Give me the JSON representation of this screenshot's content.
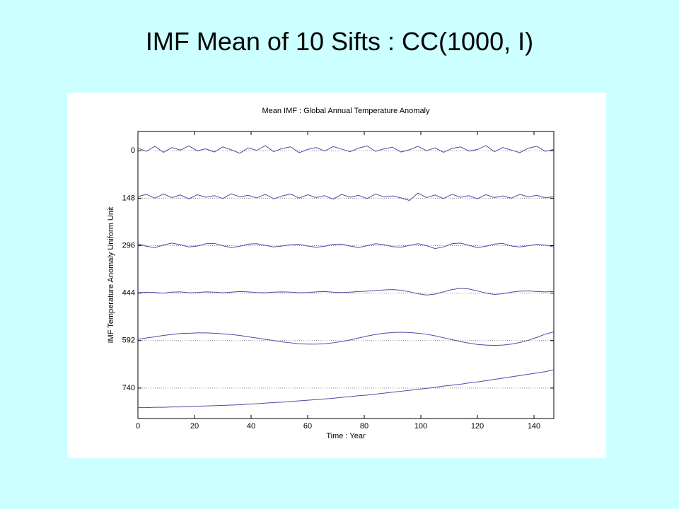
{
  "title": "IMF Mean of 10 Sifts : CC(1000, I)",
  "chart_data": {
    "type": "line",
    "title": "Mean IMF : Global Annual Temperature Anomaly",
    "x_label": "Time : Year",
    "y_label": "IMF Temperature Anomaly Uniform Unit",
    "x": [
      0,
      3,
      6,
      9,
      12,
      15,
      18,
      21,
      24,
      27,
      30,
      33,
      36,
      39,
      42,
      45,
      48,
      51,
      54,
      57,
      60,
      63,
      66,
      69,
      72,
      75,
      78,
      81,
      84,
      87,
      90,
      93,
      96,
      99,
      102,
      105,
      108,
      111,
      114,
      117,
      120,
      123,
      126,
      129,
      132,
      135,
      138,
      141,
      144,
      147
    ],
    "series": [
      {
        "color": "#4a4aa8",
        "values": [
          -8,
          2,
          -14,
          5,
          -10,
          -2,
          -15,
          0,
          -6,
          4,
          -12,
          -3,
          8,
          -9,
          -1,
          -16,
          3,
          -7,
          -12,
          6,
          -4,
          -10,
          1,
          -13,
          -5,
          3,
          -8,
          -15,
          2,
          -6,
          -11,
          4,
          -3,
          -14,
          0,
          -9,
          5,
          -7,
          -12,
          1,
          -4,
          -16,
          3,
          -10,
          -2,
          6,
          -8,
          -14,
          2,
          -4
        ]
      },
      {
        "color": "#4a4aa8",
        "values": [
          143,
          136,
          148,
          135,
          146,
          138,
          150,
          137,
          145,
          140,
          149,
          134,
          144,
          139,
          147,
          136,
          150,
          141,
          135,
          148,
          137,
          146,
          140,
          151,
          136,
          145,
          139,
          149,
          135,
          144,
          141,
          147,
          155,
          132,
          146,
          138,
          149,
          136,
          145,
          140,
          150,
          137,
          146,
          141,
          148,
          136,
          144,
          139,
          147,
          143
        ]
      },
      {
        "color": "#4a4aa8",
        "values": [
          290,
          298,
          302,
          294,
          288,
          293,
          300,
          297,
          290,
          289,
          296,
          302,
          298,
          291,
          290,
          295,
          300,
          297,
          293,
          292,
          297,
          301,
          298,
          292,
          291,
          297,
          302,
          296,
          290,
          293,
          299,
          301,
          295,
          290,
          296,
          305,
          300,
          290,
          288,
          295,
          302,
          298,
          291,
          289,
          297,
          300,
          296,
          292,
          294,
          300
        ]
      },
      {
        "color": "#4a4aa8",
        "values": [
          443,
          441,
          442,
          444,
          441,
          440,
          443,
          442,
          440,
          441,
          443,
          441,
          439,
          440,
          442,
          443,
          441,
          440,
          441,
          443,
          442,
          440,
          439,
          441,
          442,
          441,
          439,
          438,
          436,
          434,
          433,
          435,
          440,
          446,
          450,
          447,
          440,
          433,
          429,
          431,
          437,
          444,
          448,
          446,
          441,
          438,
          437,
          439,
          440,
          439
        ]
      },
      {
        "color": "#4a4aa8",
        "values": [
          588,
          584,
          580,
          576,
          573,
          570,
          569,
          568,
          568,
          569,
          571,
          573,
          576,
          580,
          584,
          588,
          592,
          596,
          599,
          602,
          603,
          603,
          602,
          599,
          595,
          590,
          584,
          578,
          573,
          569,
          567,
          566,
          567,
          569,
          572,
          577,
          583,
          589,
          595,
          600,
          604,
          606,
          607,
          606,
          603,
          598,
          591,
          582,
          572,
          565
        ]
      },
      {
        "color": "#4a4aa8",
        "values": [
          801,
          801,
          800,
          800,
          799,
          799,
          798,
          797,
          796,
          795,
          794,
          793,
          792,
          790,
          789,
          787,
          785,
          784,
          782,
          780,
          778,
          776,
          774,
          772,
          769,
          767,
          764,
          762,
          759,
          756,
          753,
          750,
          747,
          744,
          741,
          738,
          734,
          731,
          728,
          724,
          721,
          717,
          713,
          709,
          705,
          701,
          697,
          693,
          689,
          683
        ]
      }
    ],
    "xlim": [
      0,
      147
    ],
    "xticks": [
      0,
      20,
      40,
      60,
      80,
      100,
      120,
      140
    ],
    "ylim": [
      -60,
      835
    ],
    "y_inverted": true,
    "yticks": [
      0,
      148,
      296,
      444,
      592,
      740
    ],
    "grid": true
  }
}
